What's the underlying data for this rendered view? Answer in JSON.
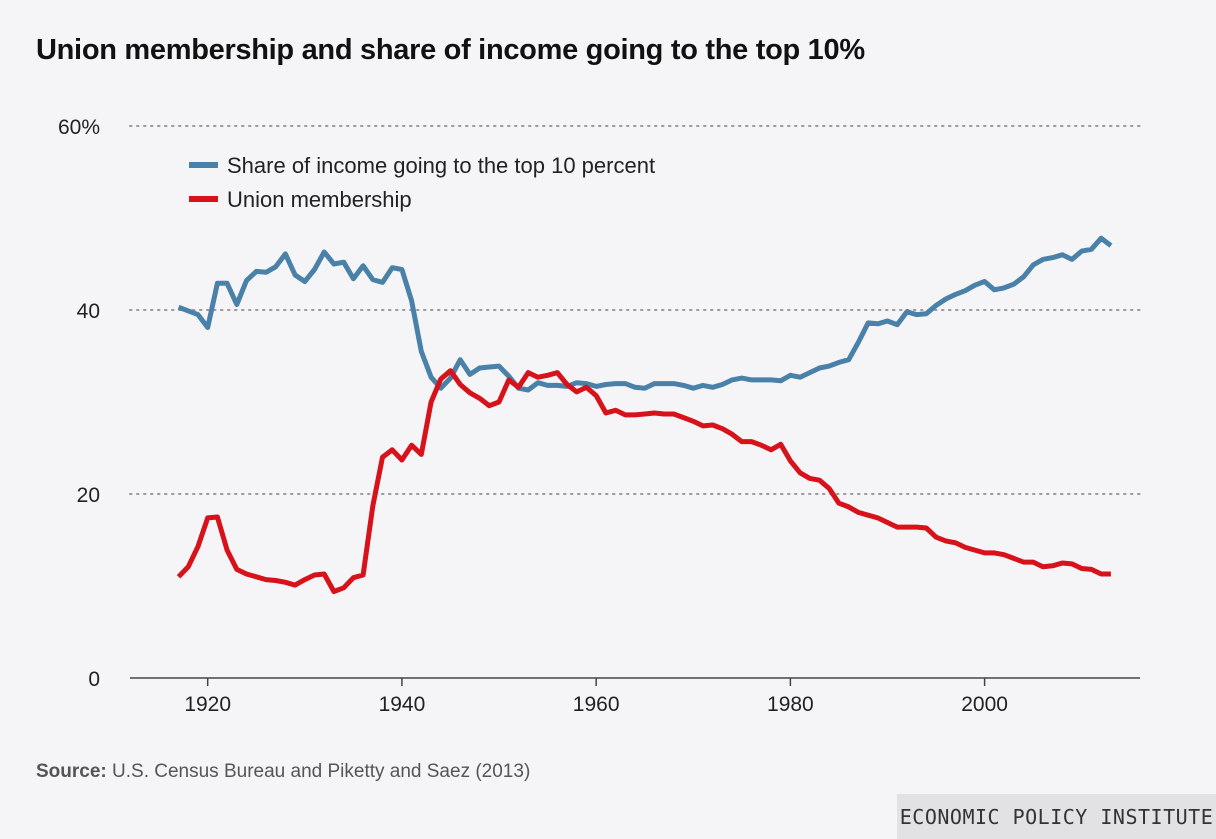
{
  "title": "Union membership and share of income going to the top 10%",
  "source": {
    "label": "Source:",
    "text": " U.S. Census Bureau and Piketty and Saez (2013)"
  },
  "brand": "ECONOMIC POLICY INSTITUTE",
  "colors": {
    "income": "#4a81a8",
    "union": "#d7121a",
    "grid": "#9a9a9a"
  },
  "chart_data": {
    "type": "line",
    "title": "Union membership and share of income going to the top 10%",
    "xlabel": "",
    "ylabel": "",
    "xlim": [
      1912,
      2016
    ],
    "ylim": [
      0,
      60
    ],
    "x_ticks": [
      1920,
      1940,
      1960,
      1980,
      2000
    ],
    "x_tick_labels": [
      "1920",
      "1940",
      "1960",
      "1980",
      "2000"
    ],
    "y_ticks": [
      0,
      20,
      40,
      60
    ],
    "y_tick_labels": [
      "0",
      "20",
      "40",
      "60%"
    ],
    "grid": "horizontal dotted",
    "legend": "top-left",
    "series": [
      {
        "name": "Share of income going to the top 10 percent",
        "color": "#4a81a8",
        "points": [
          [
            1917,
            40.3
          ],
          [
            1918,
            39.9
          ],
          [
            1919,
            39.5
          ],
          [
            1920,
            38.1
          ],
          [
            1921,
            42.9
          ],
          [
            1922,
            42.9
          ],
          [
            1923,
            40.6
          ],
          [
            1924,
            43.2
          ],
          [
            1925,
            44.2
          ],
          [
            1926,
            44.1
          ],
          [
            1927,
            44.7
          ],
          [
            1928,
            46.1
          ],
          [
            1929,
            43.8
          ],
          [
            1930,
            43.1
          ],
          [
            1931,
            44.4
          ],
          [
            1932,
            46.3
          ],
          [
            1933,
            45.0
          ],
          [
            1934,
            45.2
          ],
          [
            1935,
            43.4
          ],
          [
            1936,
            44.8
          ],
          [
            1937,
            43.3
          ],
          [
            1938,
            43.0
          ],
          [
            1939,
            44.6
          ],
          [
            1940,
            44.4
          ],
          [
            1941,
            41.0
          ],
          [
            1942,
            35.5
          ],
          [
            1943,
            32.7
          ],
          [
            1944,
            31.5
          ],
          [
            1945,
            32.6
          ],
          [
            1946,
            34.6
          ],
          [
            1947,
            33.0
          ],
          [
            1948,
            33.7
          ],
          [
            1949,
            33.8
          ],
          [
            1950,
            33.9
          ],
          [
            1951,
            32.8
          ],
          [
            1952,
            31.5
          ],
          [
            1953,
            31.3
          ],
          [
            1954,
            32.1
          ],
          [
            1955,
            31.8
          ],
          [
            1956,
            31.8
          ],
          [
            1957,
            31.7
          ],
          [
            1958,
            32.1
          ],
          [
            1959,
            32.0
          ],
          [
            1960,
            31.7
          ],
          [
            1961,
            31.9
          ],
          [
            1962,
            32.0
          ],
          [
            1963,
            32.0
          ],
          [
            1964,
            31.6
          ],
          [
            1965,
            31.5
          ],
          [
            1966,
            32.0
          ],
          [
            1967,
            32.0
          ],
          [
            1968,
            32.0
          ],
          [
            1969,
            31.8
          ],
          [
            1970,
            31.5
          ],
          [
            1971,
            31.8
          ],
          [
            1972,
            31.6
          ],
          [
            1973,
            31.9
          ],
          [
            1974,
            32.4
          ],
          [
            1975,
            32.6
          ],
          [
            1976,
            32.4
          ],
          [
            1977,
            32.4
          ],
          [
            1978,
            32.4
          ],
          [
            1979,
            32.3
          ],
          [
            1980,
            32.9
          ],
          [
            1981,
            32.7
          ],
          [
            1982,
            33.2
          ],
          [
            1983,
            33.7
          ],
          [
            1984,
            33.9
          ],
          [
            1985,
            34.3
          ],
          [
            1986,
            34.6
          ],
          [
            1987,
            36.5
          ],
          [
            1988,
            38.6
          ],
          [
            1989,
            38.5
          ],
          [
            1990,
            38.8
          ],
          [
            1991,
            38.4
          ],
          [
            1992,
            39.8
          ],
          [
            1993,
            39.5
          ],
          [
            1994,
            39.6
          ],
          [
            1995,
            40.5
          ],
          [
            1996,
            41.2
          ],
          [
            1997,
            41.7
          ],
          [
            1998,
            42.1
          ],
          [
            1999,
            42.7
          ],
          [
            2000,
            43.1
          ],
          [
            2001,
            42.2
          ],
          [
            2002,
            42.4
          ],
          [
            2003,
            42.8
          ],
          [
            2004,
            43.6
          ],
          [
            2005,
            44.9
          ],
          [
            2006,
            45.5
          ],
          [
            2007,
            45.7
          ],
          [
            2008,
            46.0
          ],
          [
            2009,
            45.5
          ],
          [
            2010,
            46.4
          ],
          [
            2011,
            46.6
          ],
          [
            2012,
            47.8
          ],
          [
            2013,
            47.0
          ]
        ]
      },
      {
        "name": "Union membership",
        "color": "#d7121a",
        "points": [
          [
            1917,
            11.0
          ],
          [
            1918,
            12.1
          ],
          [
            1919,
            14.3
          ],
          [
            1920,
            17.4
          ],
          [
            1921,
            17.5
          ],
          [
            1922,
            13.9
          ],
          [
            1923,
            11.8
          ],
          [
            1924,
            11.3
          ],
          [
            1925,
            11.0
          ],
          [
            1926,
            10.7
          ],
          [
            1927,
            10.6
          ],
          [
            1928,
            10.4
          ],
          [
            1929,
            10.1
          ],
          [
            1930,
            10.7
          ],
          [
            1931,
            11.2
          ],
          [
            1932,
            11.3
          ],
          [
            1933,
            9.4
          ],
          [
            1934,
            9.8
          ],
          [
            1935,
            10.9
          ],
          [
            1936,
            11.2
          ],
          [
            1937,
            18.7
          ],
          [
            1938,
            24.0
          ],
          [
            1939,
            24.8
          ],
          [
            1940,
            23.7
          ],
          [
            1941,
            25.3
          ],
          [
            1942,
            24.3
          ],
          [
            1943,
            30.0
          ],
          [
            1944,
            32.5
          ],
          [
            1945,
            33.4
          ],
          [
            1946,
            31.9
          ],
          [
            1947,
            31.0
          ],
          [
            1948,
            30.4
          ],
          [
            1949,
            29.6
          ],
          [
            1950,
            30.0
          ],
          [
            1951,
            32.4
          ],
          [
            1952,
            31.6
          ],
          [
            1953,
            33.2
          ],
          [
            1954,
            32.7
          ],
          [
            1955,
            32.9
          ],
          [
            1956,
            33.2
          ],
          [
            1957,
            31.9
          ],
          [
            1958,
            31.1
          ],
          [
            1959,
            31.6
          ],
          [
            1960,
            30.7
          ],
          [
            1961,
            28.8
          ],
          [
            1962,
            29.1
          ],
          [
            1963,
            28.6
          ],
          [
            1964,
            28.6
          ],
          [
            1965,
            28.7
          ],
          [
            1966,
            28.8
          ],
          [
            1967,
            28.7
          ],
          [
            1968,
            28.7
          ],
          [
            1969,
            28.3
          ],
          [
            1970,
            27.9
          ],
          [
            1971,
            27.4
          ],
          [
            1972,
            27.5
          ],
          [
            1973,
            27.1
          ],
          [
            1974,
            26.5
          ],
          [
            1975,
            25.7
          ],
          [
            1976,
            25.7
          ],
          [
            1977,
            25.3
          ],
          [
            1978,
            24.8
          ],
          [
            1979,
            25.4
          ],
          [
            1980,
            23.6
          ],
          [
            1981,
            22.3
          ],
          [
            1982,
            21.7
          ],
          [
            1983,
            21.5
          ],
          [
            1984,
            20.6
          ],
          [
            1985,
            19.0
          ],
          [
            1986,
            18.6
          ],
          [
            1987,
            18.0
          ],
          [
            1988,
            17.7
          ],
          [
            1989,
            17.4
          ],
          [
            1990,
            16.9
          ],
          [
            1991,
            16.4
          ],
          [
            1992,
            16.4
          ],
          [
            1993,
            16.4
          ],
          [
            1994,
            16.3
          ],
          [
            1995,
            15.3
          ],
          [
            1996,
            14.9
          ],
          [
            1997,
            14.7
          ],
          [
            1998,
            14.2
          ],
          [
            1999,
            13.9
          ],
          [
            2000,
            13.6
          ],
          [
            2001,
            13.6
          ],
          [
            2002,
            13.4
          ],
          [
            2003,
            13.0
          ],
          [
            2004,
            12.6
          ],
          [
            2005,
            12.6
          ],
          [
            2006,
            12.1
          ],
          [
            2007,
            12.2
          ],
          [
            2008,
            12.5
          ],
          [
            2009,
            12.4
          ],
          [
            2010,
            11.9
          ],
          [
            2011,
            11.8
          ],
          [
            2012,
            11.3
          ],
          [
            2013,
            11.3
          ]
        ]
      }
    ]
  }
}
